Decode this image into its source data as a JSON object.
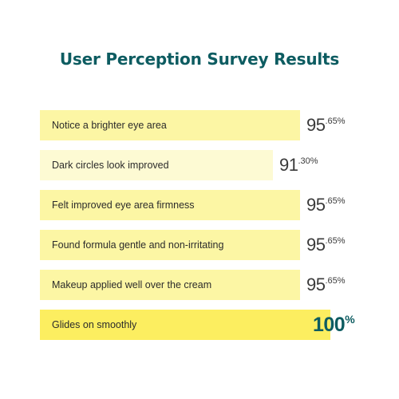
{
  "chart_data": {
    "type": "bar",
    "title": "User Perception Survey Results",
    "categories": [
      "Notice a brighter eye area",
      "Dark circles look improved",
      "Felt improved eye area firmness",
      "Found formula gentle and non-irritating",
      "Makeup applied well over the cream",
      "Glides on smoothly"
    ],
    "values": [
      95.65,
      91.3,
      95.65,
      95.65,
      95.65,
      100
    ],
    "value_labels": [
      {
        "int": "95",
        "dec": ".65%"
      },
      {
        "int": "91",
        "dec": ".30%"
      },
      {
        "int": "95",
        "dec": ".65%"
      },
      {
        "int": "95",
        "dec": ".65%"
      },
      {
        "int": "95",
        "dec": ".65%"
      },
      {
        "int": "100",
        "dec": "%"
      }
    ],
    "xlim": [
      0,
      100
    ],
    "orientation": "horizontal",
    "colors": {
      "regular": "#fcf6a4",
      "lowest": "#fdfad3",
      "highest": "#fcee60",
      "title": "#0d5c61",
      "highlight_value": "#0d5c61"
    }
  }
}
